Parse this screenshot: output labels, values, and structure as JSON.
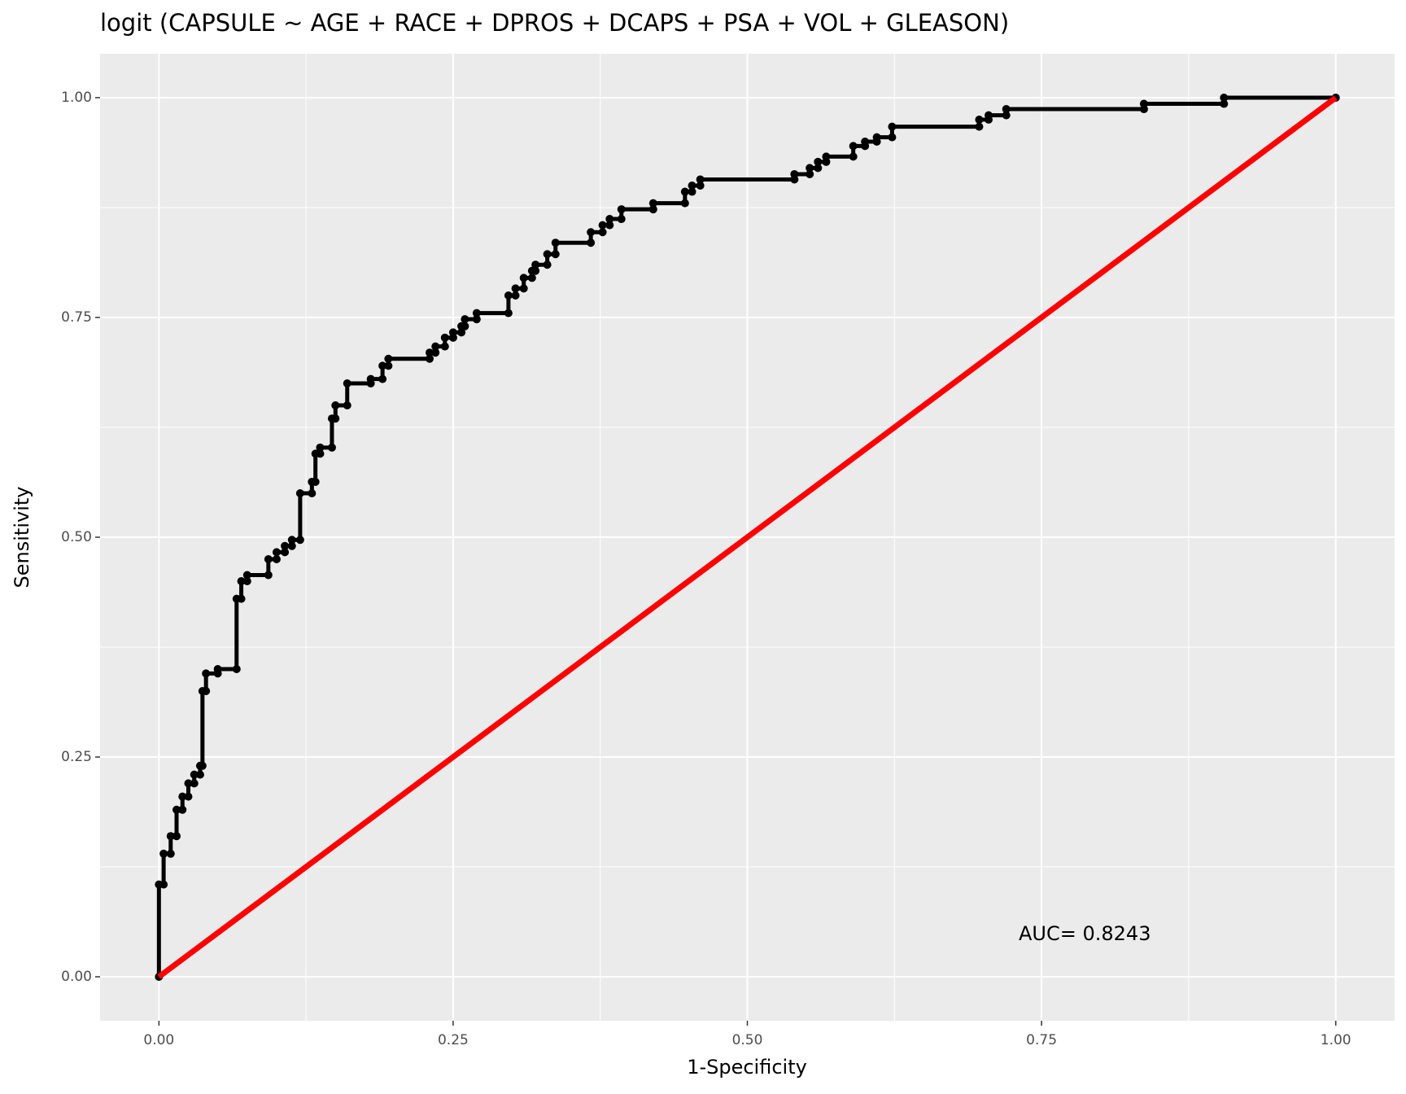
{
  "chart_data": {
    "type": "line",
    "title": "logit (CAPSULE ~ AGE + RACE + DPROS + DCAPS + PSA + VOL + GLEASON)",
    "x_label": "1-Specificity",
    "y_label": "Sensitivity",
    "annotation": "AUC= 0.8243",
    "xlim": [
      -0.05,
      1.05
    ],
    "ylim": [
      -0.05,
      1.05
    ],
    "xticks": [
      {
        "value": 0,
        "label": "0.00"
      },
      {
        "value": 0.25,
        "label": "0.25"
      },
      {
        "value": 0.5,
        "label": "0.50"
      },
      {
        "value": 0.75,
        "label": "0.75"
      },
      {
        "value": 1,
        "label": "1.00"
      }
    ],
    "yticks": [
      {
        "value": 0,
        "label": "0.00"
      },
      {
        "value": 0.25,
        "label": "0.25"
      },
      {
        "value": 0.5,
        "label": "0.50"
      },
      {
        "value": 0.75,
        "label": "0.75"
      },
      {
        "value": 1,
        "label": "1.00"
      }
    ],
    "grid": true,
    "series": [
      {
        "color": "#000000",
        "x": [
          0,
          0,
          0.004,
          0.004,
          0.01,
          0.01,
          0.015,
          0.015,
          0.02,
          0.02,
          0.025,
          0.025,
          0.03,
          0.03,
          0.035,
          0.035,
          0.037,
          0.037,
          0.04,
          0.04,
          0.05,
          0.05,
          0.066,
          0.066,
          0.07,
          0.07,
          0.075,
          0.075,
          0.093,
          0.093,
          0.1,
          0.1,
          0.107,
          0.107,
          0.113,
          0.113,
          0.12,
          0.12,
          0.13,
          0.13,
          0.133,
          0.133,
          0.137,
          0.137,
          0.147,
          0.147,
          0.15,
          0.15,
          0.16,
          0.16,
          0.18,
          0.18,
          0.19,
          0.19,
          0.195,
          0.195,
          0.23,
          0.23,
          0.235,
          0.235,
          0.243,
          0.243,
          0.25,
          0.25,
          0.257,
          0.257,
          0.26,
          0.26,
          0.27,
          0.27,
          0.297,
          0.297,
          0.303,
          0.303,
          0.31,
          0.31,
          0.317,
          0.317,
          0.32,
          0.32,
          0.33,
          0.33,
          0.337,
          0.337,
          0.367,
          0.367,
          0.377,
          0.377,
          0.383,
          0.383,
          0.393,
          0.393,
          0.42,
          0.42,
          0.447,
          0.447,
          0.453,
          0.453,
          0.46,
          0.46,
          0.54,
          0.54,
          0.553,
          0.553,
          0.56,
          0.56,
          0.567,
          0.567,
          0.59,
          0.59,
          0.6,
          0.6,
          0.61,
          0.61,
          0.623,
          0.623,
          0.697,
          0.697,
          0.705,
          0.705,
          0.72,
          0.72,
          0.837,
          0.837,
          0.905,
          0.905,
          1
        ],
        "values": [
          0,
          0.105,
          0.105,
          0.14,
          0.14,
          0.16,
          0.16,
          0.19,
          0.19,
          0.205,
          0.205,
          0.22,
          0.22,
          0.23,
          0.23,
          0.24,
          0.24,
          0.325,
          0.325,
          0.345,
          0.345,
          0.35,
          0.35,
          0.43,
          0.43,
          0.45,
          0.45,
          0.457,
          0.457,
          0.475,
          0.475,
          0.483,
          0.483,
          0.49,
          0.49,
          0.497,
          0.497,
          0.55,
          0.55,
          0.563,
          0.563,
          0.595,
          0.595,
          0.602,
          0.602,
          0.635,
          0.635,
          0.65,
          0.65,
          0.675,
          0.675,
          0.68,
          0.68,
          0.695,
          0.695,
          0.703,
          0.703,
          0.71,
          0.71,
          0.717,
          0.717,
          0.727,
          0.727,
          0.733,
          0.733,
          0.74,
          0.74,
          0.748,
          0.748,
          0.755,
          0.755,
          0.775,
          0.775,
          0.783,
          0.783,
          0.795,
          0.795,
          0.803,
          0.803,
          0.81,
          0.81,
          0.822,
          0.822,
          0.835,
          0.835,
          0.847,
          0.847,
          0.855,
          0.855,
          0.862,
          0.862,
          0.873,
          0.873,
          0.88,
          0.88,
          0.893,
          0.893,
          0.9,
          0.9,
          0.907,
          0.907,
          0.913,
          0.913,
          0.92,
          0.92,
          0.927,
          0.927,
          0.933,
          0.933,
          0.945,
          0.945,
          0.95,
          0.95,
          0.955,
          0.955,
          0.967,
          0.967,
          0.975,
          0.975,
          0.98,
          0.98,
          0.987,
          0.987,
          0.993,
          0.993,
          1,
          1
        ]
      },
      {
        "color": "#ff0000",
        "x": [
          0,
          1
        ],
        "values": [
          0,
          1
        ]
      }
    ]
  }
}
